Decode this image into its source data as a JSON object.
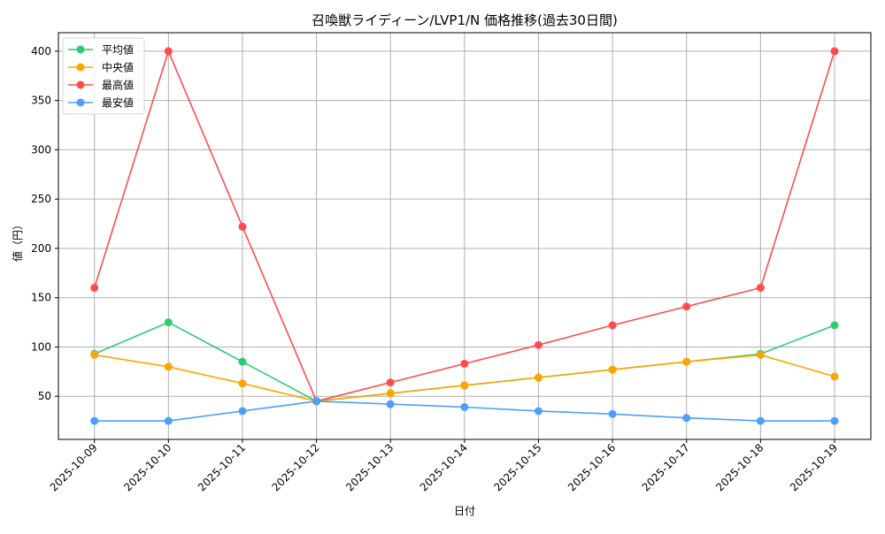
{
  "chart_data": {
    "type": "line",
    "title": "召喚獣ライディーン/LVP1/N 価格推移(過去30日間)",
    "xlabel": "日付",
    "ylabel": "値（円）",
    "categories": [
      "2025-10-09",
      "2025-10-10",
      "2025-10-11",
      "2025-10-12",
      "2025-10-13",
      "2025-10-14",
      "2025-10-15",
      "2025-10-16",
      "2025-10-17",
      "2025-10-18",
      "2025-10-19"
    ],
    "series": [
      {
        "name": "平均値",
        "color": "#2ecc71",
        "values": [
          93,
          125,
          85,
          45,
          53,
          61,
          69,
          77,
          85,
          93,
          122
        ]
      },
      {
        "name": "中央値",
        "color": "#ffa500",
        "values": [
          92,
          80,
          63,
          45,
          53,
          61,
          69,
          77,
          85,
          92,
          70
        ]
      },
      {
        "name": "最高値",
        "color": "#ff4d4d",
        "values": [
          160,
          400,
          222,
          45,
          64,
          83,
          102,
          122,
          141,
          160,
          400
        ]
      },
      {
        "name": "最安値",
        "color": "#4d9fff",
        "values": [
          25,
          25,
          35,
          45,
          42,
          39,
          35,
          32,
          28,
          25,
          25
        ]
      }
    ],
    "yticks": [
      50,
      100,
      150,
      200,
      250,
      300,
      350,
      400
    ],
    "ylim": [
      6.25,
      418.75
    ],
    "grid": true,
    "legend_position": "upper left",
    "marker": "circle"
  }
}
